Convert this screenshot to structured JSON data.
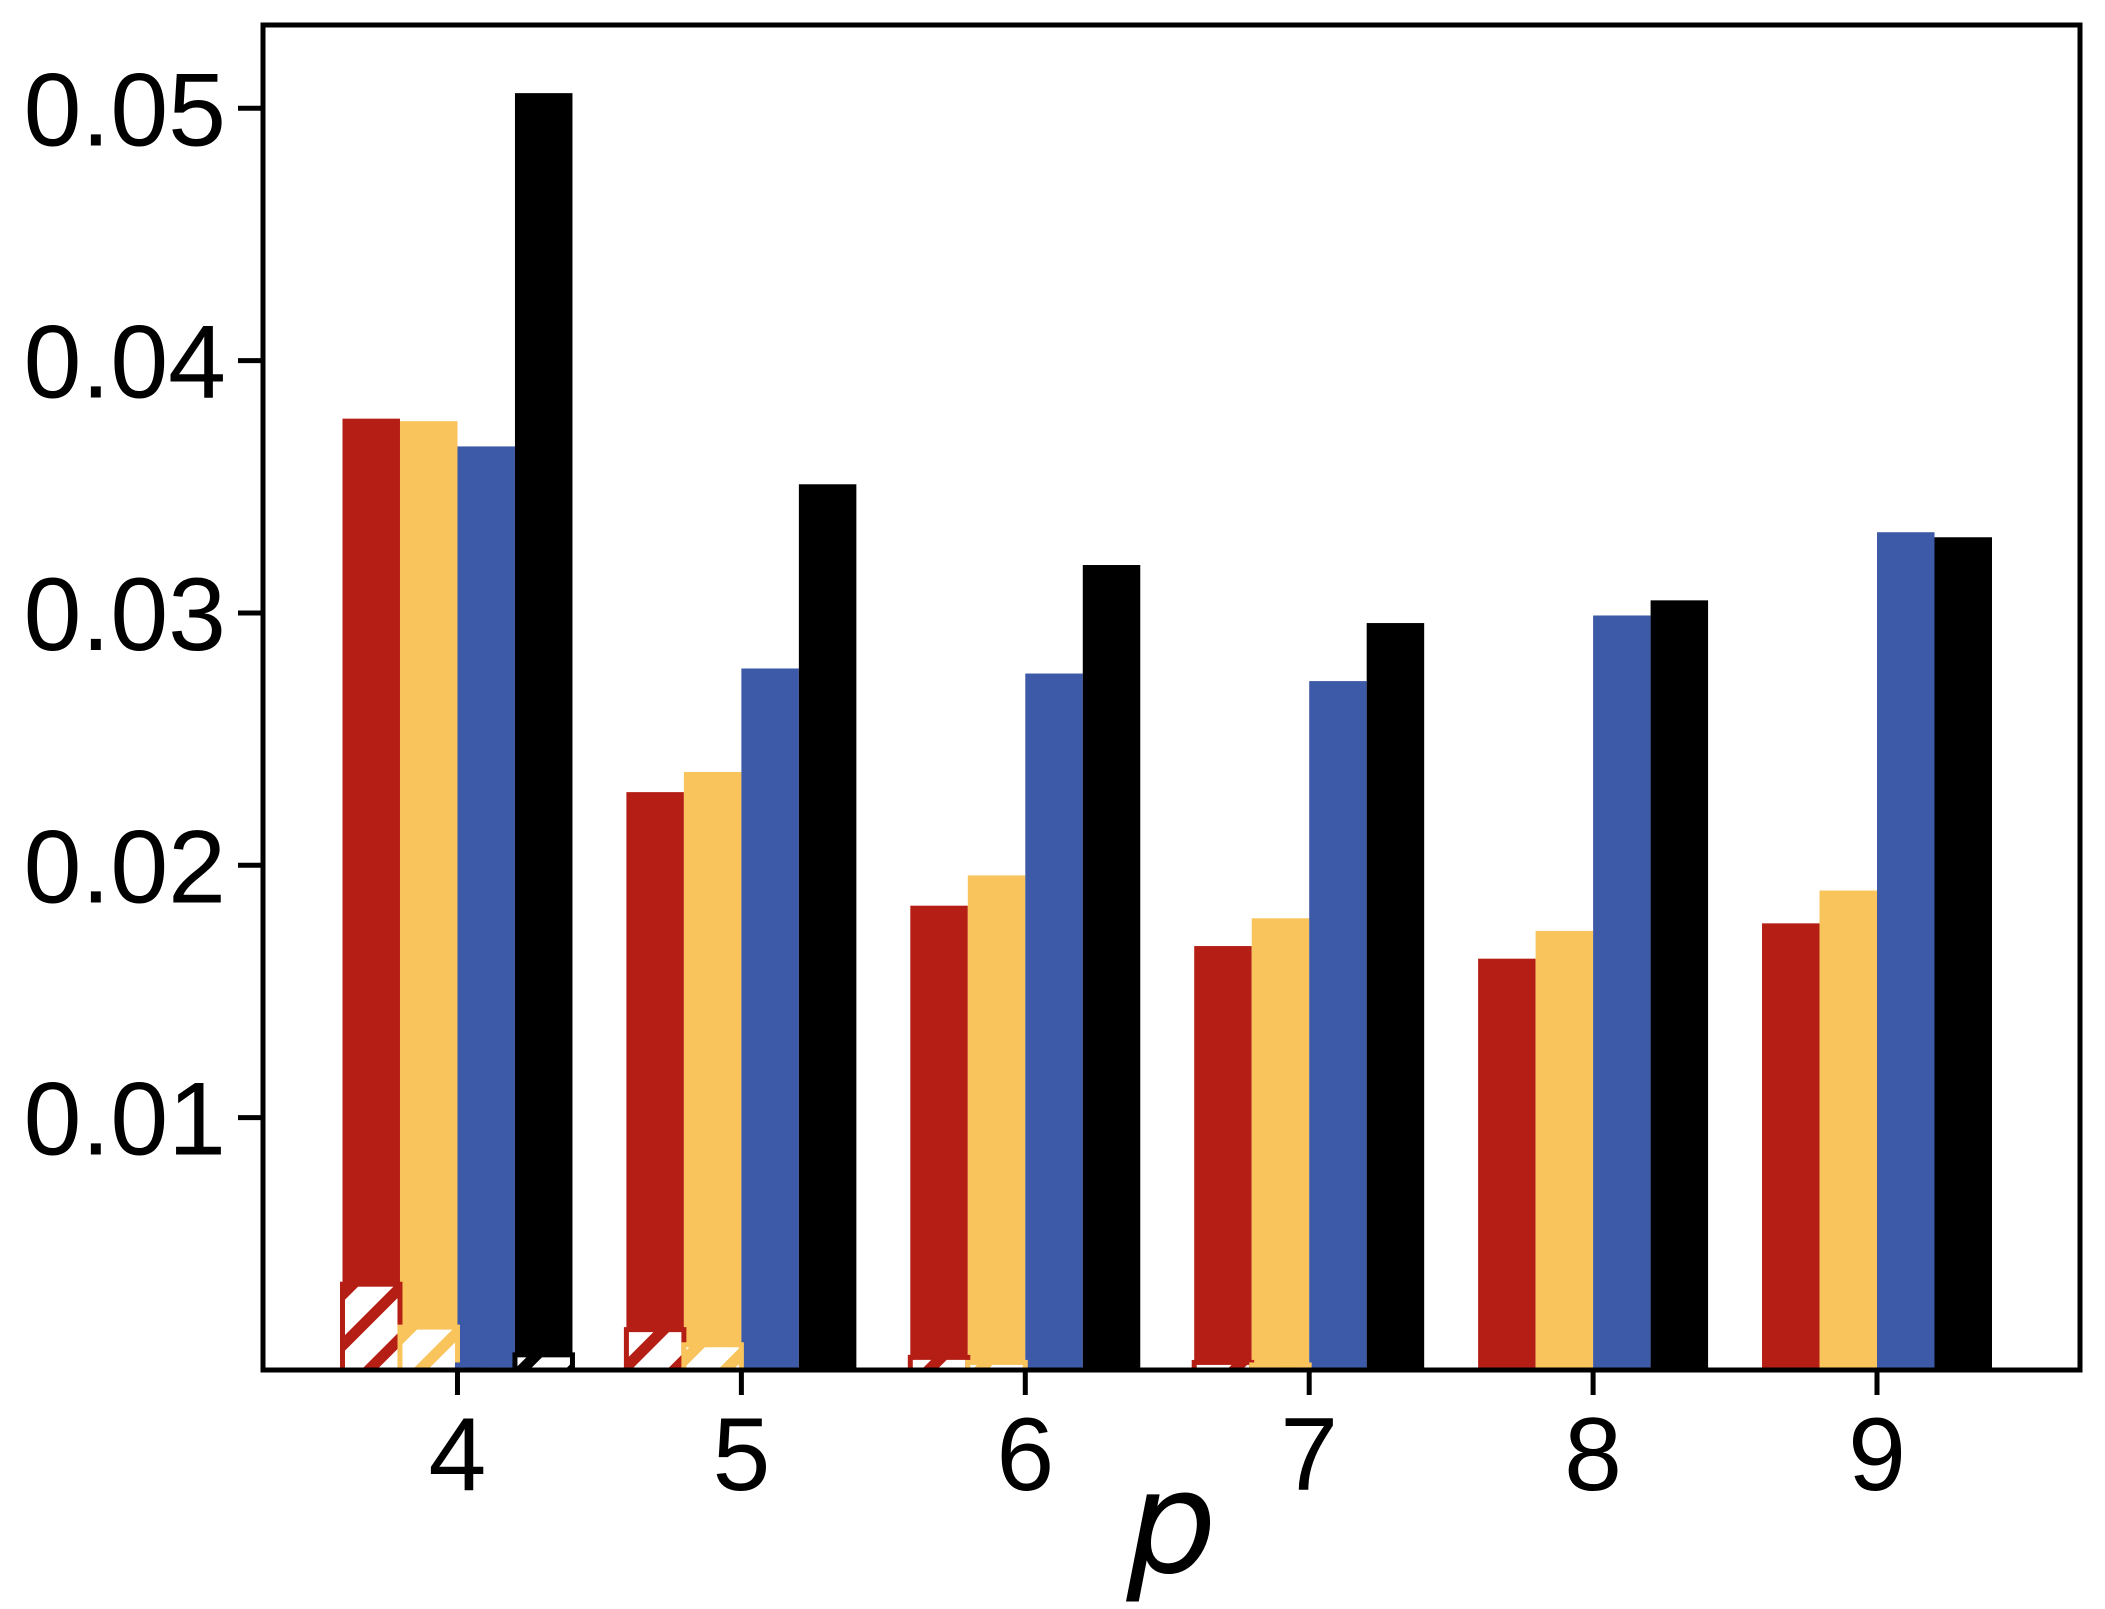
{
  "figure": {
    "background": "#ffffff"
  },
  "chart_data": {
    "type": "bar",
    "title": "",
    "xlabel": "p",
    "ylabel": "",
    "grid": false,
    "legend": "none",
    "categories": [
      "4",
      "5",
      "6",
      "7",
      "8",
      "9"
    ],
    "x_values": [
      4,
      5,
      6,
      7,
      8,
      9
    ],
    "xlim": [
      3.315,
      9.715
    ],
    "ylim": [
      0,
      0.0533
    ],
    "yticks": [
      "0.01",
      "0.02",
      "0.03",
      "0.04",
      "0.05"
    ],
    "ytick_values": [
      0.01,
      0.02,
      0.03,
      0.04,
      0.05
    ],
    "bar_width_units": 0.2025,
    "series": [
      {
        "name": "red-solid",
        "color": "#B41E14",
        "values": [
          0.0377,
          0.0229,
          0.0184,
          0.0168,
          0.0163,
          0.0177
        ]
      },
      {
        "name": "orange-solid",
        "color": "#F8C45B",
        "values": [
          0.0376,
          0.0237,
          0.0196,
          0.0179,
          0.0174,
          0.019
        ]
      },
      {
        "name": "blue-solid",
        "color": "#3C5AA7",
        "values": [
          0.0366,
          0.0278,
          0.0276,
          0.0273,
          0.0299,
          0.0332
        ]
      },
      {
        "name": "black-solid",
        "color": "#000000",
        "values": [
          0.0506,
          0.0351,
          0.0319,
          0.0296,
          0.0305,
          0.033
        ]
      }
    ],
    "hatched_overlay_series": [
      {
        "name": "red-hatched",
        "color": "#B41E14",
        "values": [
          0.0034,
          0.0016,
          0.0005,
          0.0003,
          0,
          0
        ]
      },
      {
        "name": "orange-hatched",
        "color": "#F8C45B",
        "values": [
          0.0017,
          0.001,
          0.0003,
          0.0002,
          0,
          0
        ]
      },
      {
        "name": "blue-hatched",
        "color": "#3C5AA7",
        "values": [
          0.0002,
          0,
          0,
          0,
          0,
          0
        ]
      },
      {
        "name": "black-hatched",
        "color": "#000000",
        "values": [
          0.0006,
          0,
          0,
          0,
          0,
          0
        ]
      }
    ]
  }
}
